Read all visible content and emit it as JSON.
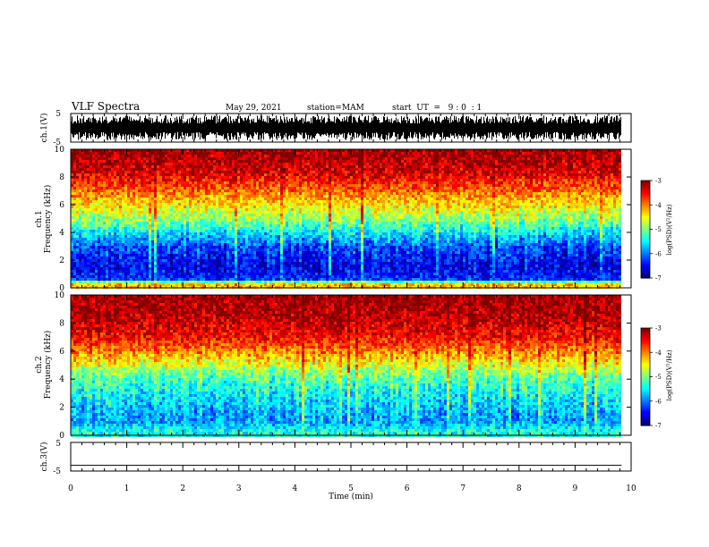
{
  "header": {
    "title": "VLF Spectra",
    "date": "May 29, 2021",
    "station": "station=MAM",
    "start": "start  UT  =   9 : 0  : 1"
  },
  "chart_data": [
    {
      "type": "line",
      "name": "ch1-waveform",
      "ylabel": "ch.1(V)",
      "xlim": [
        0,
        10
      ],
      "ylim": [
        -5,
        5
      ],
      "yticks": [
        "5",
        "-5"
      ],
      "description_values": {
        "min": -5,
        "max": 5
      }
    },
    {
      "type": "heatmap",
      "name": "ch1-spectrogram",
      "ylabel_channel": "ch.1",
      "ylabel": "Frequency  (kHz)",
      "xlim": [
        0,
        10
      ],
      "ylim": [
        0,
        10
      ],
      "yticks": [
        "0",
        "2",
        "4",
        "6",
        "8",
        "10"
      ],
      "colorbar": {
        "label": "log(PSD)(V²/Hz)",
        "ticks": [
          "-3",
          "-4",
          "-5",
          "-6",
          "-7"
        ],
        "range": [
          -7,
          -3
        ]
      },
      "profile": [
        {
          "f": 0.3,
          "v": -4.3
        },
        {
          "f": 0.6,
          "v": -6.3
        },
        {
          "f": 1.5,
          "v": -6.6
        },
        {
          "f": 3.0,
          "v": -6.2
        },
        {
          "f": 4.2,
          "v": -5.4
        },
        {
          "f": 5.0,
          "v": -4.9
        },
        {
          "f": 6.0,
          "v": -4.4
        },
        {
          "f": 7.0,
          "v": -3.9
        },
        {
          "f": 8.5,
          "v": -3.3
        },
        {
          "f": 10.0,
          "v": -3.1
        }
      ]
    },
    {
      "type": "heatmap",
      "name": "ch2-spectrogram",
      "ylabel_channel": "ch.2",
      "ylabel": "Frequency  (kHz)",
      "xlim": [
        0,
        10
      ],
      "ylim": [
        0,
        10
      ],
      "yticks": [
        "0",
        "2",
        "4",
        "6",
        "8",
        "10"
      ],
      "colorbar": {
        "label": "log(PSD)(V²/Hz)",
        "ticks": [
          "-3",
          "-4",
          "-5",
          "-6",
          "-7"
        ],
        "range": [
          -7,
          -3
        ]
      },
      "profile": [
        {
          "f": 0.3,
          "v": -5.4
        },
        {
          "f": 1.0,
          "v": -5.9
        },
        {
          "f": 2.5,
          "v": -5.6
        },
        {
          "f": 4.0,
          "v": -5.2
        },
        {
          "f": 5.0,
          "v": -4.6
        },
        {
          "f": 6.0,
          "v": -4.0
        },
        {
          "f": 7.0,
          "v": -3.5
        },
        {
          "f": 8.5,
          "v": -3.2
        },
        {
          "f": 10.0,
          "v": -3.1
        }
      ]
    },
    {
      "type": "line",
      "name": "ch3-waveform",
      "ylabel": "ch.3(V)",
      "xlim": [
        0,
        10
      ],
      "ylim": [
        -5,
        5
      ],
      "yticks": [
        "5",
        "-5"
      ],
      "values_constant": -3
    }
  ],
  "xaxis": {
    "label": "Time  (min)",
    "ticks": [
      "0",
      "1",
      "2",
      "3",
      "4",
      "5",
      "6",
      "7",
      "8",
      "9",
      "10"
    ],
    "data_end": 9.83
  }
}
